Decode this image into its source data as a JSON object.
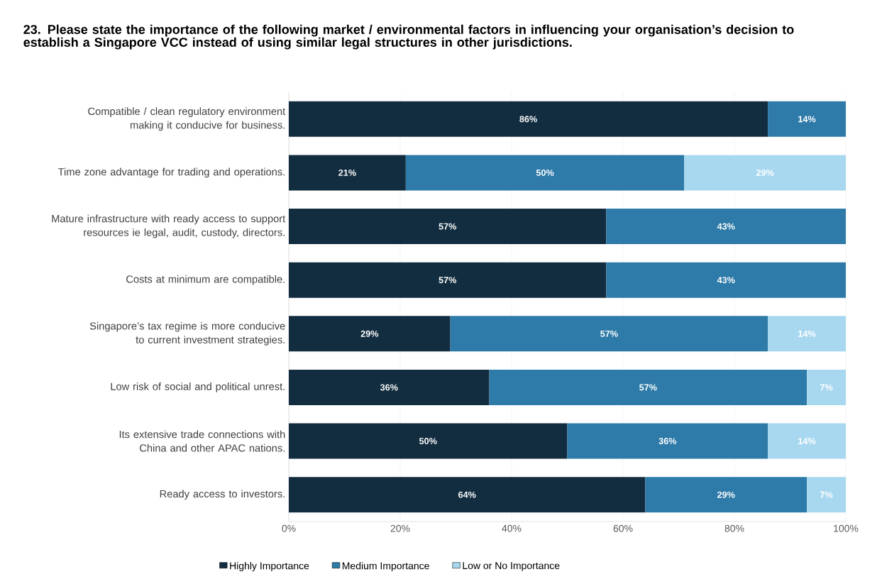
{
  "chart_data": {
    "type": "bar",
    "orientation": "horizontal",
    "stacked": true,
    "title": "23. Please state the importance of the following market / environmental factors in influencing your organisation’s decision to establish a Singapore VCC instead of using similar legal structures in other jurisdictions.",
    "categories": [
      "Compatible / clean regulatory environment making it conducive for business.",
      "Time zone advantage for trading and operations.",
      "Mature infrastructure with ready access to support resources ie legal, audit, custody, directors.",
      "Costs at minimum are compatible.",
      "Singapore’s tax regime is more conducive to current investment strategies.",
      "Low risk of social and political unrest.",
      "Its extensive trade connections with China and other APAC nations.",
      "Ready access to investors."
    ],
    "series": [
      {
        "name": "Highly Importance",
        "color": "#132d40",
        "values": [
          86,
          21,
          57,
          57,
          29,
          36,
          50,
          64
        ],
        "value_labels": [
          "86%",
          "21%",
          "57%",
          "57%",
          "29%",
          "36%",
          "50%",
          "64%"
        ]
      },
      {
        "name": "Medium Importance",
        "color": "#2e7aa8",
        "values": [
          14,
          50,
          43,
          43,
          57,
          57,
          36,
          29
        ],
        "value_labels": [
          "14%",
          "50%",
          "43%",
          "43%",
          "57%",
          "57%",
          "36%",
          "29%"
        ]
      },
      {
        "name": "Low or No Importance",
        "color": "#a8d8f0",
        "values": [
          0,
          29,
          0,
          0,
          14,
          7,
          14,
          7
        ],
        "value_labels": [
          null,
          "29%",
          null,
          null,
          "14%",
          "7%",
          "14%",
          "7%"
        ]
      }
    ],
    "xlim": [
      0,
      100
    ],
    "xticks": [
      {
        "value": 0,
        "label": "0%"
      },
      {
        "value": 20,
        "label": "20%"
      },
      {
        "value": 40,
        "label": "40%"
      },
      {
        "value": 60,
        "label": "60%"
      },
      {
        "value": 80,
        "label": "80%"
      },
      {
        "value": 100,
        "label": "100%"
      }
    ],
    "grid": "x",
    "legend": "bottom"
  }
}
